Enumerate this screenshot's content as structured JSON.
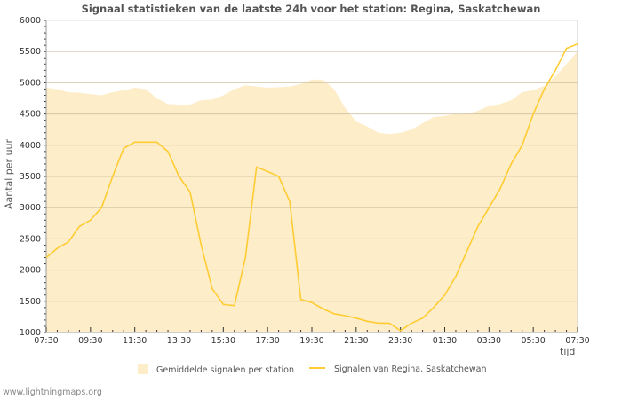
{
  "chart_data": {
    "type": "area",
    "title": "Signaal statistieken van de laatste 24h voor het station: Regina, Saskatchewan",
    "ylabel": "Aantal per uur",
    "xlabel": "tijd",
    "ylim": [
      1000,
      6000
    ],
    "yticks": [
      1000,
      1500,
      2000,
      2500,
      3000,
      3500,
      4000,
      4500,
      5000,
      5500,
      6000
    ],
    "xtick_labels": [
      "07:30",
      "09:30",
      "11:30",
      "13:30",
      "15:30",
      "17:30",
      "19:30",
      "21:30",
      "23:30",
      "01:30",
      "03:30",
      "05:30",
      "07:30"
    ],
    "x_hours": [
      0,
      0.5,
      1,
      1.5,
      2,
      2.5,
      3,
      3.5,
      4,
      4.5,
      5,
      5.5,
      6,
      6.5,
      7,
      7.5,
      8,
      8.5,
      9,
      9.5,
      10,
      10.5,
      11,
      11.5,
      12,
      12.5,
      13,
      13.5,
      14,
      14.5,
      15,
      15.5,
      16,
      16.5,
      17,
      17.5,
      18,
      18.5,
      19,
      19.5,
      20,
      20.5,
      21,
      21.5,
      22,
      22.5,
      23,
      23.5,
      24
    ],
    "grid": true,
    "legend_position": "bottom",
    "series": [
      {
        "name": "Gemiddelde signalen per station",
        "kind": "area",
        "color": "#fdedc9",
        "values": [
          4920,
          4900,
          4850,
          4840,
          4820,
          4800,
          4850,
          4880,
          4920,
          4900,
          4750,
          4660,
          4650,
          4650,
          4720,
          4730,
          4800,
          4900,
          4960,
          4940,
          4920,
          4930,
          4940,
          4980,
          5050,
          5050,
          4900,
          4600,
          4380,
          4300,
          4200,
          4180,
          4200,
          4250,
          4350,
          4450,
          4470,
          4500,
          4500,
          4550,
          4630,
          4660,
          4720,
          4850,
          4880,
          4950,
          5100,
          5300,
          5500
        ]
      },
      {
        "name": "Signalen van Regina, Saskatchewan",
        "kind": "line",
        "color": "#ffcc33",
        "values": [
          2200,
          2350,
          2450,
          2700,
          2800,
          3000,
          3500,
          3950,
          4050,
          4050,
          4050,
          3900,
          3500,
          3250,
          2400,
          1700,
          1450,
          1430,
          2200,
          3650,
          3580,
          3500,
          3100,
          1530,
          1480,
          1380,
          1300,
          1270,
          1230,
          1180,
          1150,
          1150,
          1030,
          1150,
          1230,
          1400,
          1600,
          1900,
          2300,
          2700,
          3000,
          3300,
          3700,
          4000,
          4500,
          4900,
          5200,
          5550,
          5620
        ]
      }
    ]
  },
  "footer": "www.lightningmaps.org"
}
